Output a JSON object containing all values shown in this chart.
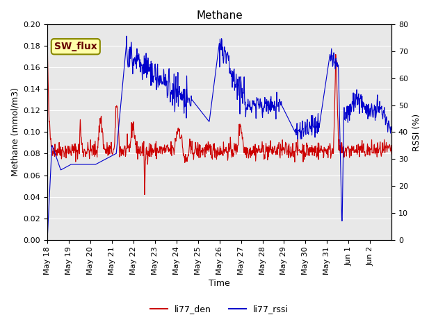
{
  "title": "Methane",
  "xlabel": "Time",
  "ylabel_left": "Methane (mmol/m3)",
  "ylabel_right": "RSSI (%)",
  "ylim_left": [
    0.0,
    0.2
  ],
  "ylim_right": [
    0,
    80
  ],
  "yticks_left": [
    0.0,
    0.02,
    0.04,
    0.06,
    0.08,
    0.1,
    0.12,
    0.14,
    0.16,
    0.18,
    0.2
  ],
  "yticks_right": [
    0,
    10,
    20,
    30,
    40,
    50,
    60,
    70,
    80
  ],
  "bg_color": "#e8e8e8",
  "fig_bg_color": "#ffffff",
  "line1_color": "#cc0000",
  "line2_color": "#0000cc",
  "legend_labels": [
    "li77_den",
    "li77_rssi"
  ],
  "watermark_text": "SW_flux",
  "watermark_facecolor": "#ffffaa",
  "watermark_edgecolor": "#888800",
  "watermark_textcolor": "#660000"
}
